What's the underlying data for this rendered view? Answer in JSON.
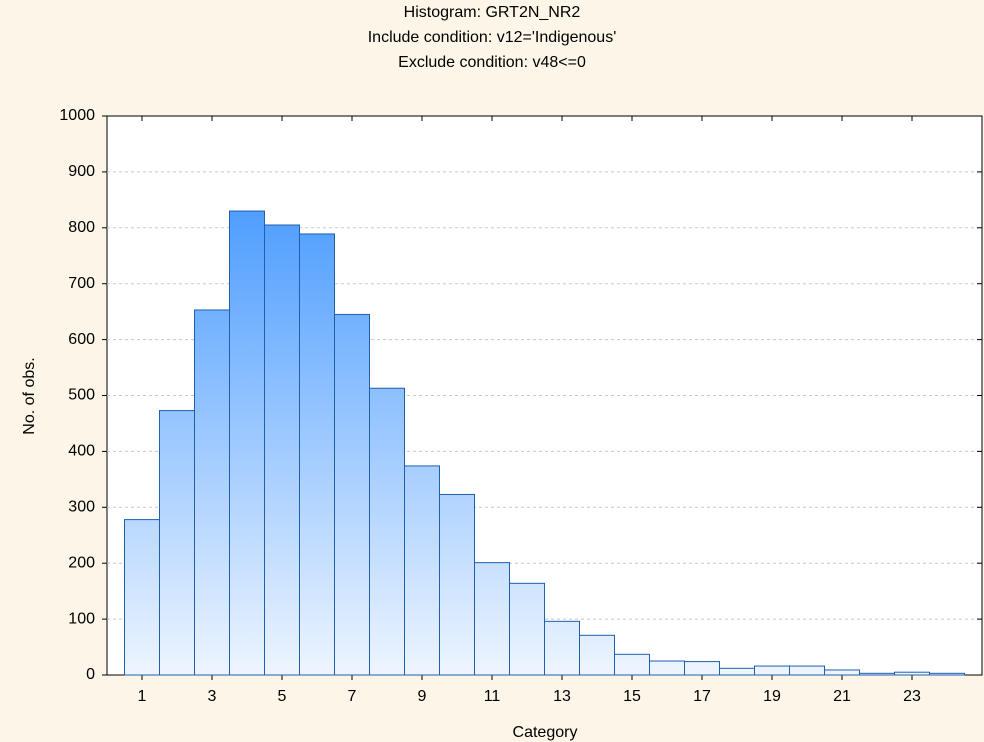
{
  "chart_data": {
    "type": "histogram",
    "title": "Histogram: GRT2N_NR2",
    "subtitle": [
      "Include condition: v12='Indigenous'",
      "Exclude condition: v48<=0"
    ],
    "x_label": "Category",
    "y_label": "No. of obs.",
    "bins": [
      0.5,
      1.5,
      2.5,
      3.5,
      4.5,
      5.5,
      6.5,
      7.5,
      8.5,
      9.5,
      10.5,
      11.5,
      12.5,
      13.5,
      14.5,
      15.5,
      16.5,
      17.5,
      18.5,
      19.5,
      20.5,
      21.5,
      22.5,
      23.5,
      24.5
    ],
    "values": [
      278,
      473,
      653,
      830,
      805,
      789,
      645,
      513,
      374,
      323,
      201,
      164,
      96,
      71,
      37,
      25,
      24,
      12,
      16,
      16,
      9,
      3,
      5,
      3
    ],
    "color": "#2f8cff",
    "edge_color": "#1f5fae",
    "xlim": [
      0,
      25
    ],
    "xticks": [
      1,
      3,
      5,
      7,
      9,
      11,
      13,
      15,
      17,
      19,
      21,
      23
    ],
    "ylim": [
      0,
      1000
    ],
    "yticks": [
      0,
      100,
      200,
      300,
      400,
      500,
      600,
      700,
      800,
      900,
      1000
    ],
    "grid": true
  }
}
